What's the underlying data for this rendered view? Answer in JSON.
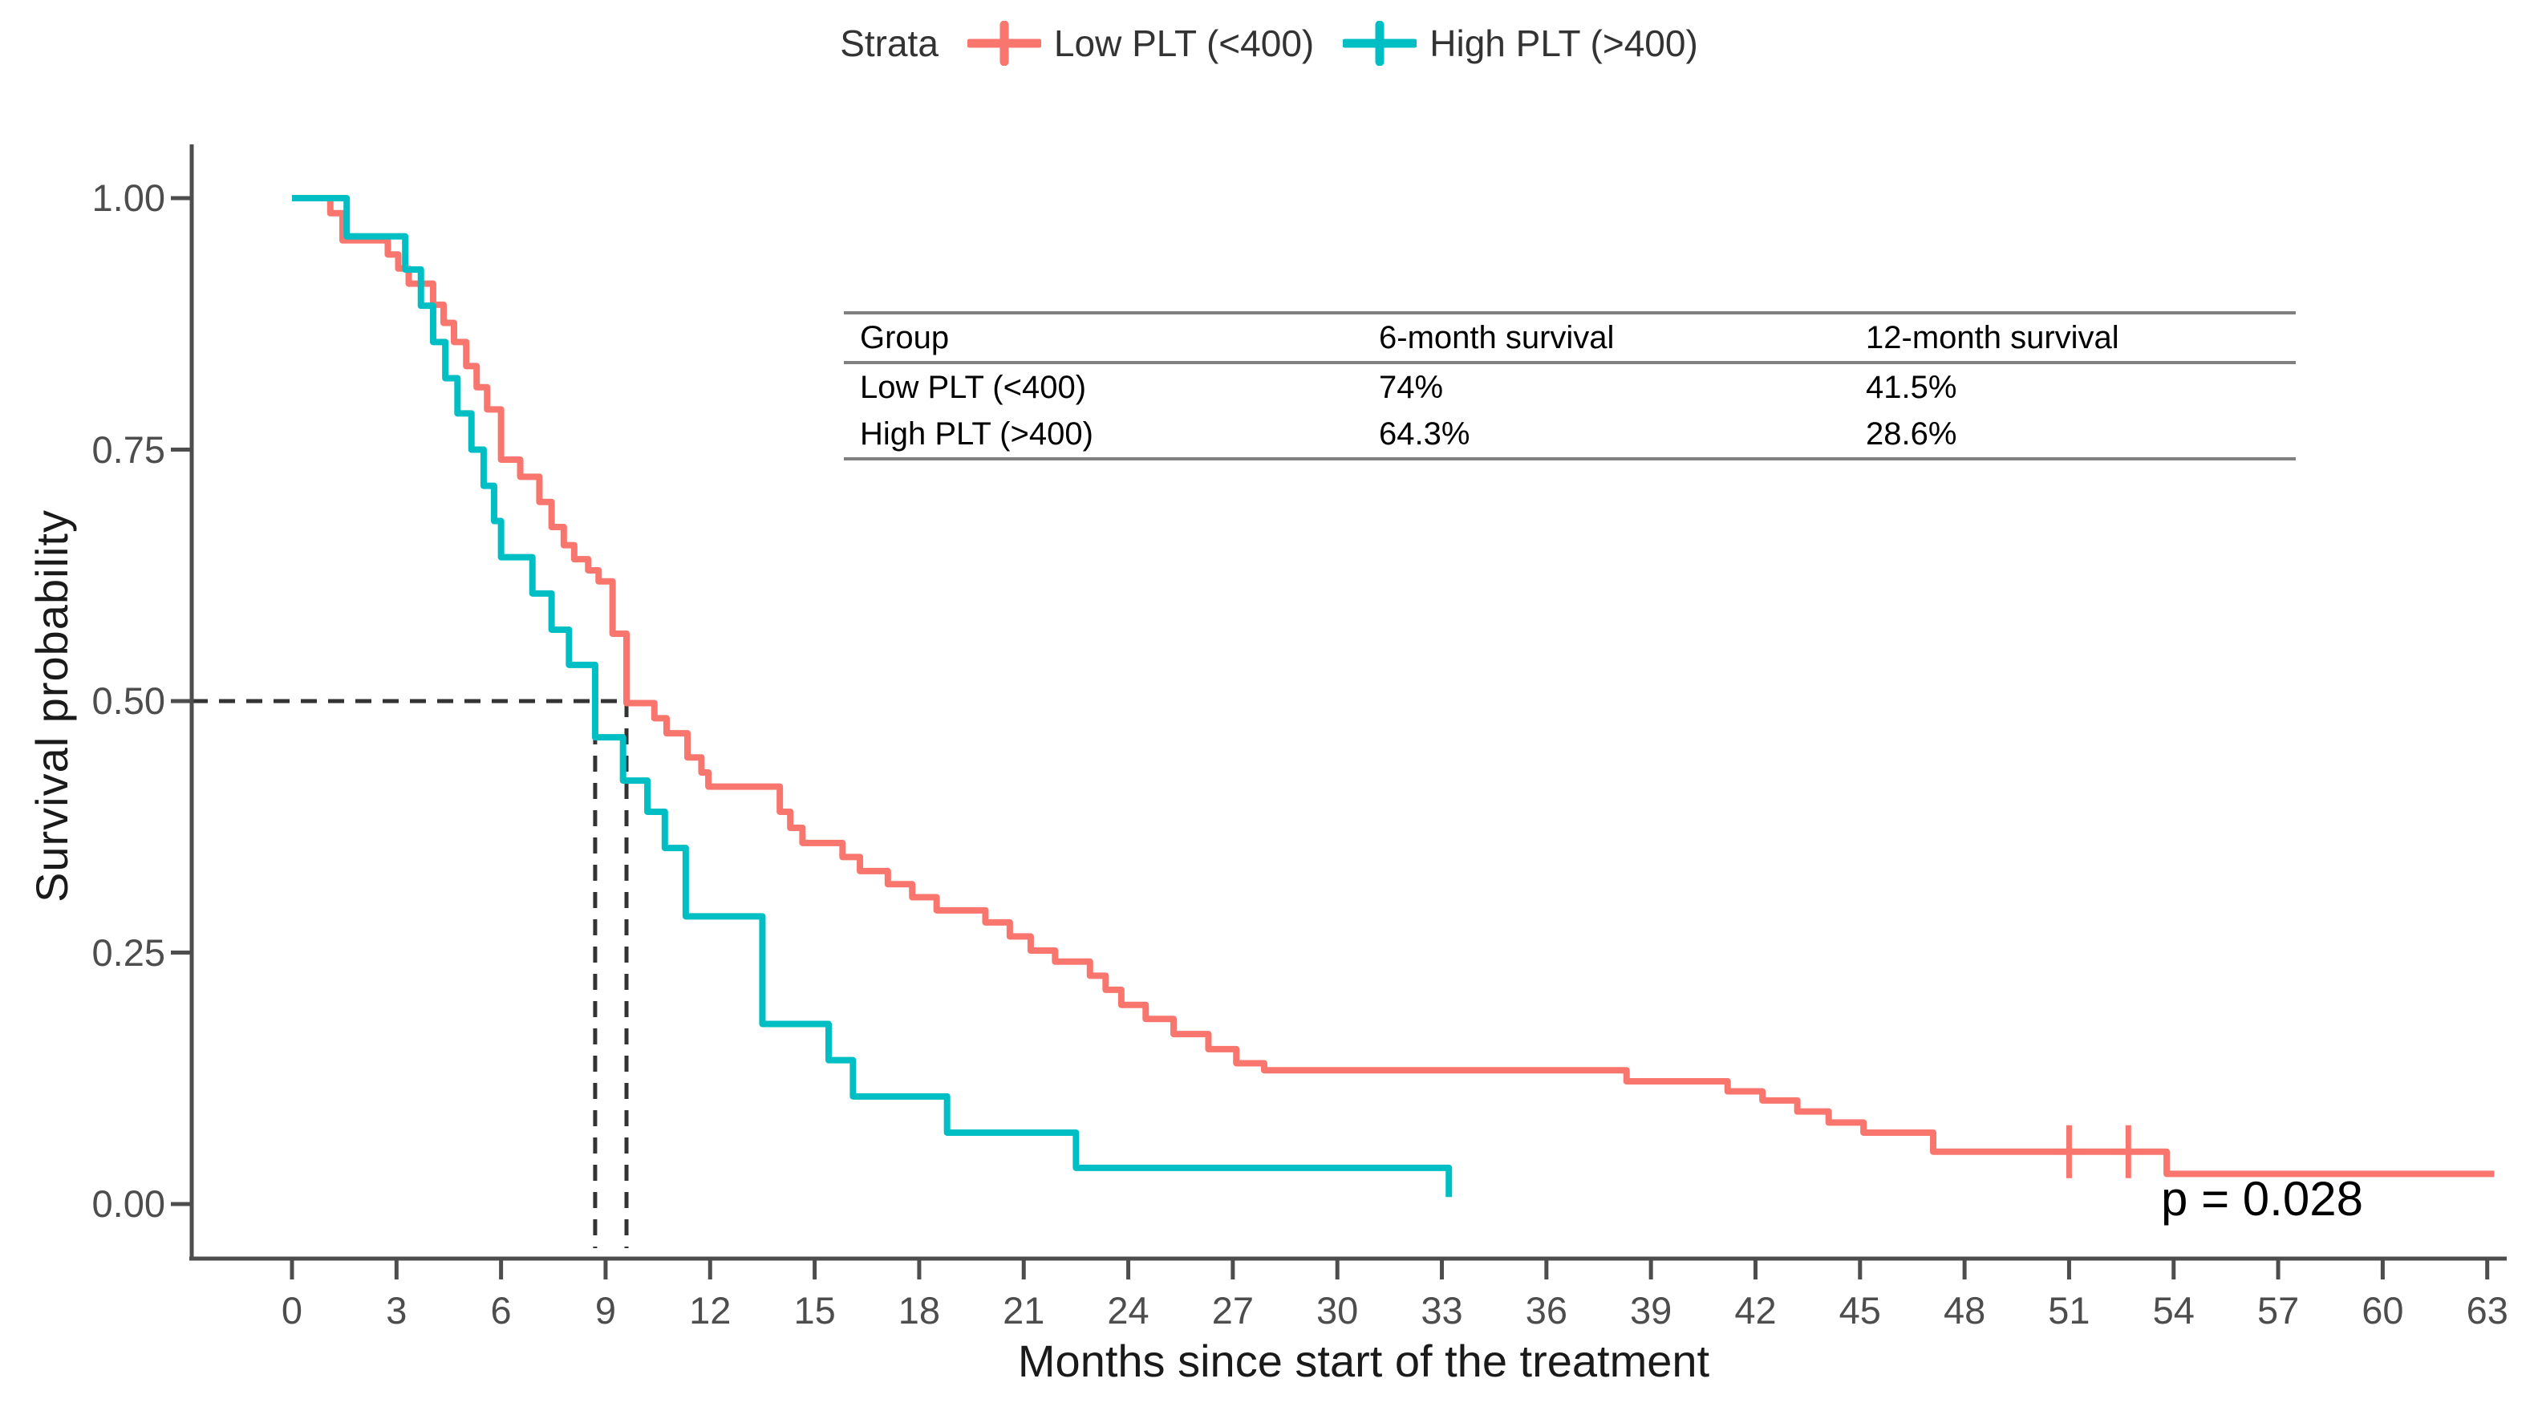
{
  "legend": {
    "title": "Strata",
    "items": [
      {
        "label": "Low PLT (<400)",
        "color": "#F8766D"
      },
      {
        "label": "High PLT (>400)",
        "color": "#00BFC4"
      }
    ]
  },
  "y_axis": {
    "title": "Survival probability",
    "tick_values": [
      1.0,
      0.75,
      0.5,
      0.25,
      0.0
    ],
    "tick_labels": [
      "1.00",
      "0.75",
      "0.50",
      "0.25",
      "0.00"
    ]
  },
  "x_axis": {
    "title": "Months since start of the treatment",
    "tick_values": [
      0,
      3,
      6,
      9,
      12,
      15,
      18,
      21,
      24,
      27,
      30,
      33,
      36,
      39,
      42,
      45,
      48,
      51,
      54,
      57,
      60,
      63
    ],
    "tick_labels": [
      "0",
      "3",
      "6",
      "9",
      "12",
      "15",
      "18",
      "21",
      "24",
      "27",
      "30",
      "33",
      "36",
      "39",
      "42",
      "45",
      "48",
      "51",
      "54",
      "57",
      "60",
      "63"
    ]
  },
  "annotation": {
    "p_value": "p = 0.028"
  },
  "inset_table": {
    "headers": [
      "Group",
      "6-month survival",
      "12-month survival"
    ],
    "rows": [
      [
        "Low PLT (<400)",
        "74%",
        "41.5%"
      ],
      [
        "High PLT (>400)",
        "64.3%",
        "28.6%"
      ]
    ]
  },
  "chart_data": {
    "type": "line",
    "subtype": "kaplan-meier-step",
    "title": "",
    "xlabel": "Months since start of the treatment",
    "ylabel": "Survival probability",
    "xlim": [
      0,
      63
    ],
    "ylim": [
      0.0,
      1.0
    ],
    "grid": false,
    "legend_position": "top",
    "p_value": "p = 0.028",
    "reference_probability": 0.5,
    "medians_months": {
      "low_plt": 9.6,
      "high_plt": 8.7
    },
    "series": [
      {
        "name": "Low PLT (<400)",
        "color": "#F8766D",
        "end_x": 63.2,
        "censor_marks": [
          [
            51.0,
            0.052
          ],
          [
            52.7,
            0.052
          ]
        ],
        "steps": [
          [
            0,
            1.0
          ],
          [
            1.1,
            0.985
          ],
          [
            1.45,
            0.958
          ],
          [
            2.75,
            0.944
          ],
          [
            3.05,
            0.93
          ],
          [
            3.35,
            0.915
          ],
          [
            4.05,
            0.894
          ],
          [
            4.35,
            0.876
          ],
          [
            4.65,
            0.857
          ],
          [
            5.0,
            0.833
          ],
          [
            5.3,
            0.812
          ],
          [
            5.6,
            0.79
          ],
          [
            6.0,
            0.74
          ],
          [
            6.55,
            0.723
          ],
          [
            7.1,
            0.698
          ],
          [
            7.45,
            0.673
          ],
          [
            7.8,
            0.655
          ],
          [
            8.1,
            0.641
          ],
          [
            8.5,
            0.63
          ],
          [
            8.8,
            0.619
          ],
          [
            9.2,
            0.567
          ],
          [
            9.6,
            0.498
          ],
          [
            10.4,
            0.483
          ],
          [
            10.75,
            0.468
          ],
          [
            11.35,
            0.444
          ],
          [
            11.75,
            0.429
          ],
          [
            11.95,
            0.415
          ],
          [
            14.0,
            0.39
          ],
          [
            14.3,
            0.374
          ],
          [
            14.65,
            0.359
          ],
          [
            15.8,
            0.345
          ],
          [
            16.3,
            0.331
          ],
          [
            17.1,
            0.318
          ],
          [
            17.8,
            0.305
          ],
          [
            18.5,
            0.292
          ],
          [
            19.9,
            0.28
          ],
          [
            20.6,
            0.266
          ],
          [
            21.2,
            0.252
          ],
          [
            21.9,
            0.241
          ],
          [
            22.9,
            0.227
          ],
          [
            23.35,
            0.213
          ],
          [
            23.8,
            0.198
          ],
          [
            24.5,
            0.184
          ],
          [
            25.3,
            0.169
          ],
          [
            26.3,
            0.154
          ],
          [
            27.1,
            0.14
          ],
          [
            27.9,
            0.133
          ],
          [
            38.3,
            0.122
          ],
          [
            41.2,
            0.112
          ],
          [
            42.2,
            0.103
          ],
          [
            43.2,
            0.092
          ],
          [
            44.1,
            0.081
          ],
          [
            45.1,
            0.071
          ],
          [
            47.1,
            0.052
          ],
          [
            53.8,
            0.03
          ]
        ]
      },
      {
        "name": "High PLT (>400)",
        "color": "#00BFC4",
        "end_x": 33.2,
        "censor_marks": [],
        "steps": [
          [
            0,
            1.0
          ],
          [
            1.57,
            0.962
          ],
          [
            3.25,
            0.929
          ],
          [
            3.7,
            0.893
          ],
          [
            4.05,
            0.857
          ],
          [
            4.4,
            0.821
          ],
          [
            4.75,
            0.786
          ],
          [
            5.15,
            0.75
          ],
          [
            5.5,
            0.714
          ],
          [
            5.8,
            0.679
          ],
          [
            6.0,
            0.643
          ],
          [
            6.9,
            0.607
          ],
          [
            7.45,
            0.571
          ],
          [
            7.95,
            0.536
          ],
          [
            8.7,
            0.464
          ],
          [
            9.5,
            0.421
          ],
          [
            10.2,
            0.39
          ],
          [
            10.7,
            0.354
          ],
          [
            11.3,
            0.286
          ],
          [
            13.5,
            0.179
          ],
          [
            15.4,
            0.143
          ],
          [
            16.1,
            0.107
          ],
          [
            18.8,
            0.071
          ],
          [
            22.5,
            0.036
          ],
          [
            33.2,
            0.007
          ]
        ]
      }
    ],
    "survival_table": {
      "headers": [
        "Group",
        "6-month survival",
        "12-month survival"
      ],
      "rows": [
        [
          "Low PLT (<400)",
          "74%",
          "41.5%"
        ],
        [
          "High PLT (>400)",
          "64.3%",
          "28.6%"
        ]
      ]
    }
  }
}
